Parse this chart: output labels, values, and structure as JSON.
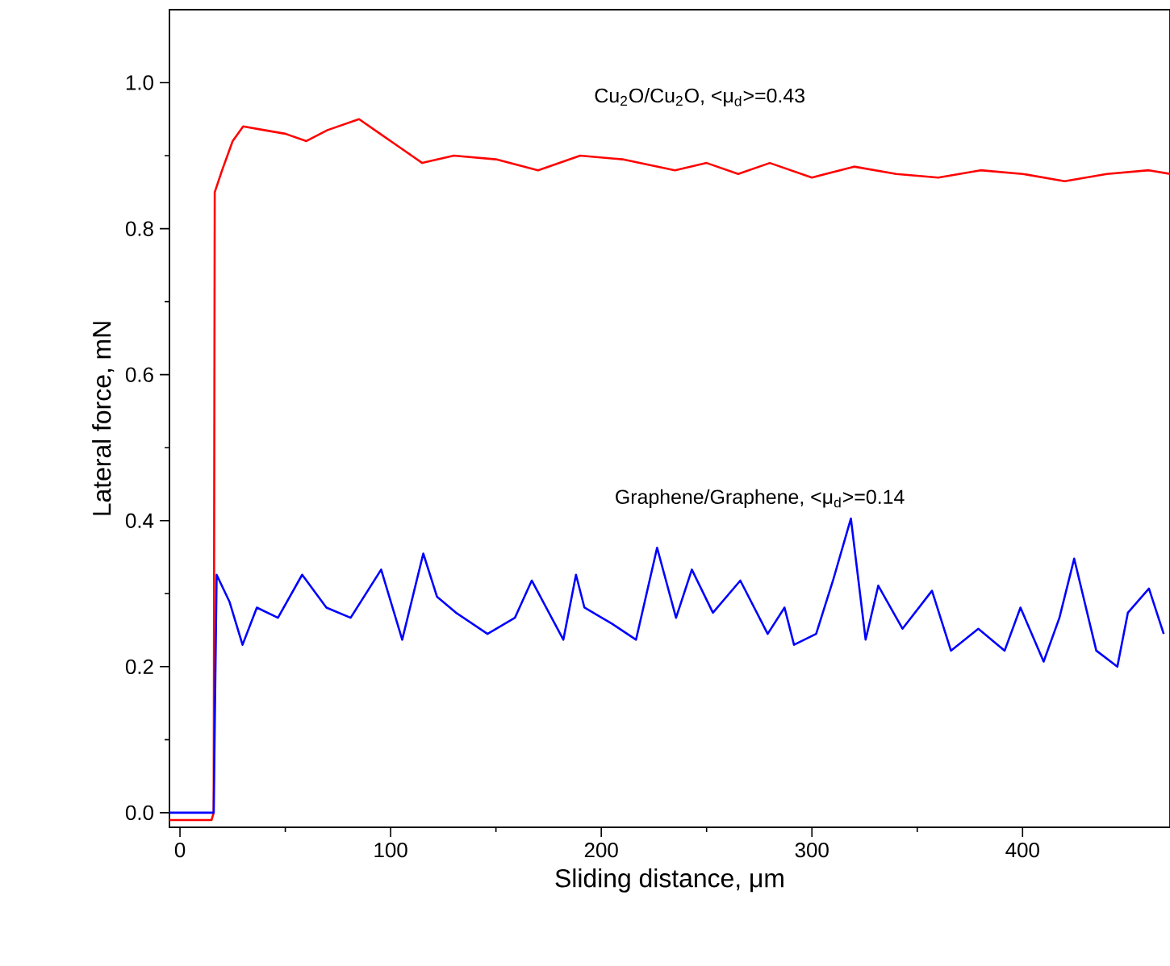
{
  "chart_data": {
    "type": "line",
    "xlabel": "Sliding distance, μm",
    "ylabel": "Lateral force, mN",
    "xlim": [
      -5,
      470
    ],
    "ylim": [
      -0.02,
      1.1
    ],
    "xticks": [
      0,
      100,
      200,
      300,
      400
    ],
    "yticks": [
      {
        "value": 0,
        "label": "0.0"
      },
      {
        "value": 0.2,
        "label": "0.2"
      },
      {
        "value": 0.4,
        "label": "0.4"
      },
      {
        "value": 0.6,
        "label": "0.6"
      },
      {
        "value": 0.8,
        "label": "0.8"
      },
      {
        "value": 1.0,
        "label": "1.0"
      }
    ],
    "grid": false,
    "marker": "none",
    "line_style": "solid",
    "annotations": [
      "Cu$_{2}$O/Cu$_{2}$O, <μ$_{d}$>=0.43",
      "Graphene/Graphene, <μ$_{d}$>=0.14"
    ],
    "series": [
      {
        "color": "#ff0000",
        "x": [
          -5,
          5,
          15,
          16,
          16.5,
          20,
          25,
          30,
          40,
          50,
          60,
          70,
          85,
          95,
          105,
          115,
          130,
          150,
          170,
          190,
          210,
          235,
          250,
          265,
          280,
          300,
          320,
          340,
          360,
          380,
          400,
          420,
          440,
          460,
          470
        ],
        "values": [
          -0.01,
          -0.01,
          -0.01,
          0.0,
          0.85,
          0.88,
          0.92,
          0.94,
          0.935,
          0.93,
          0.92,
          0.935,
          0.95,
          0.93,
          0.91,
          0.89,
          0.9,
          0.895,
          0.88,
          0.9,
          0.895,
          0.88,
          0.89,
          0.875,
          0.89,
          0.87,
          0.885,
          0.875,
          0.87,
          0.88,
          0.875,
          0.865,
          0.875,
          0.88,
          0.875
        ]
      },
      {
        "color": "#0000ff",
        "x": [
          -5,
          5,
          16,
          17.4,
          23.5,
          29.7,
          36.5,
          46.5,
          58,
          69.5,
          81,
          95.5,
          105.5,
          115.5,
          122,
          131,
          146,
          159,
          167,
          182,
          188,
          192,
          205,
          216.5,
          226.5,
          235.5,
          243,
          253,
          266,
          279,
          287,
          291.5,
          302,
          310,
          318.5,
          325.5,
          331.5,
          343,
          357,
          366,
          379,
          391.5,
          399,
          410,
          417.5,
          424.5,
          435,
          445,
          450,
          460,
          467
        ],
        "values": [
          0.0,
          0.0,
          0.0,
          0.326,
          0.289,
          0.23,
          0.281,
          0.267,
          0.326,
          0.281,
          0.267,
          0.333,
          0.237,
          0.355,
          0.296,
          0.274,
          0.245,
          0.267,
          0.318,
          0.237,
          0.326,
          0.281,
          0.259,
          0.237,
          0.363,
          0.267,
          0.333,
          0.274,
          0.318,
          0.245,
          0.281,
          0.23,
          0.245,
          0.318,
          0.403,
          0.237,
          0.311,
          0.252,
          0.304,
          0.222,
          0.252,
          0.222,
          0.281,
          0.207,
          0.267,
          0.348,
          0.222,
          0.2,
          0.274,
          0.307,
          0.245
        ]
      }
    ]
  }
}
